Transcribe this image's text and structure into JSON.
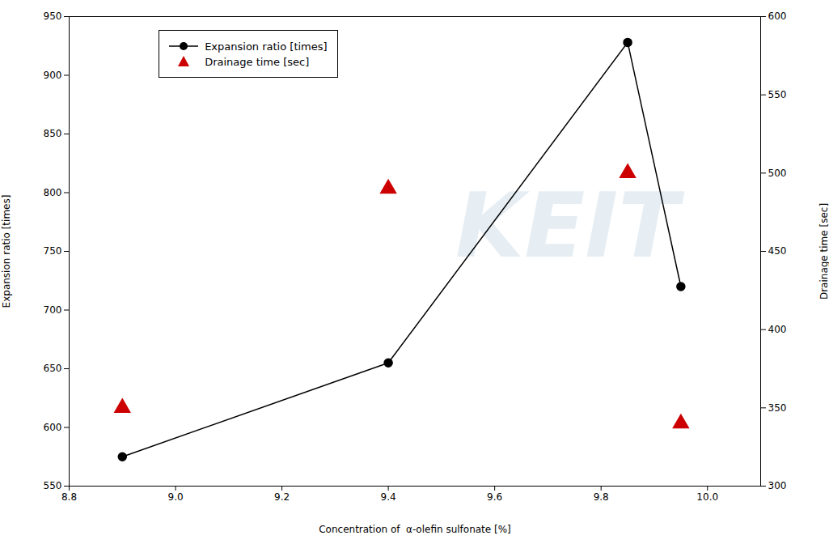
{
  "chart_data": {
    "type": "line",
    "xlabel": "Concentration of  α-olefin sulfonate [%]",
    "ylabel": "Expansion ratio [times]",
    "y2label": "Drainage time [sec]",
    "x": [
      8.9,
      9.4,
      9.85,
      9.95
    ],
    "series": [
      {
        "name": "Expansion ratio [times]",
        "type": "line",
        "marker": "circle",
        "color": "#000000",
        "values": [
          575,
          655,
          928,
          720
        ]
      },
      {
        "name": "Drainage time [sec]",
        "type": "scatter",
        "marker": "triangle",
        "color": "#cc0000",
        "axis": "y2",
        "values": [
          350,
          490,
          500,
          340
        ]
      }
    ],
    "xlim": [
      8.8,
      10.1
    ],
    "xticks": [
      8.8,
      {
        "value": 9.0,
        "label": "9.0"
      },
      9.2,
      9.4,
      9.6,
      9.8,
      {
        "value": 10.0,
        "label": "10.0"
      }
    ],
    "ylim": [
      550,
      950
    ],
    "yticks": [
      550,
      600,
      650,
      700,
      750,
      800,
      850,
      900,
      950
    ],
    "y2lim": [
      300,
      600
    ],
    "y2ticks": [
      300,
      350,
      400,
      450,
      500,
      550,
      600
    ],
    "grid": false,
    "legend": "upper left",
    "annotations": [
      {
        "text": "KEIT"
      }
    ]
  }
}
